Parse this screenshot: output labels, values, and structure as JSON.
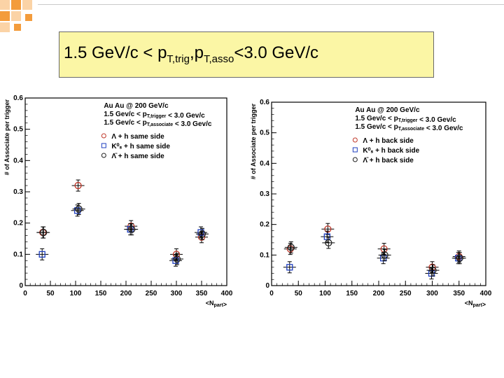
{
  "slide": {
    "title_main": "1.5 GeV/c < p",
    "title_sub1": "T,trig",
    "title_mid": ",p",
    "title_sub2": "T,asso",
    "title_end": "<3.0 GeV/c"
  },
  "colors": {
    "title_bg": "#fbf6a5",
    "deco_orange": "#f39c3c",
    "deco_light": "#fbd3a6",
    "lambda": "#c0392b",
    "k0s": "#1f3fbf",
    "antilambda": "#222222"
  },
  "chart_data": [
    {
      "type": "scatter",
      "side": "same side",
      "ylabel": "# of Associate per trigger",
      "xlabel": "<N",
      "xlabel_sub": "part",
      "xlabel_end": ">",
      "xlim": [
        0,
        400
      ],
      "ylim": [
        0,
        0.6
      ],
      "xticks": [
        0,
        50,
        100,
        150,
        200,
        250,
        300,
        350,
        400
      ],
      "yticks": [
        0,
        0.1,
        0.2,
        0.3,
        0.4,
        0.5,
        0.6
      ],
      "annotation": {
        "line1": "Au Au @ 200 GeV/c",
        "line2a": "1.5 Gev/c < p",
        "line2sub": "T,trigger",
        "line2b": " < 3.0 Gev/c",
        "line3a": "1.5 Gev/c < p",
        "line3sub": "T,associate",
        "line3b": " < 3.0 Gev/c"
      },
      "legend": [
        {
          "label": "Λ + h same side",
          "series": "lambda"
        },
        {
          "label": "K⁰ₛ + h same side",
          "series": "k0s"
        },
        {
          "label": "Λ̄ + h same side",
          "series": "antilambda"
        }
      ],
      "series": [
        {
          "name": "lambda",
          "marker": "circle",
          "x": [
            35,
            105,
            210,
            300,
            350
          ],
          "y": [
            0.17,
            0.32,
            0.19,
            0.1,
            0.155
          ]
        },
        {
          "name": "k0s",
          "marker": "square",
          "x": [
            35,
            105,
            210,
            300,
            350
          ],
          "y": [
            0.1,
            0.24,
            0.18,
            0.08,
            0.17
          ]
        },
        {
          "name": "antilambda",
          "marker": "circle",
          "x": [
            35,
            105,
            210,
            300,
            350
          ],
          "y": [
            0.17,
            0.245,
            0.18,
            0.085,
            0.165
          ]
        }
      ]
    },
    {
      "type": "scatter",
      "side": "back side",
      "ylabel": "# of Associate per trigger",
      "xlabel": "<N",
      "xlabel_sub": "part",
      "xlabel_end": ">",
      "xlim": [
        0,
        400
      ],
      "ylim": [
        0,
        0.6
      ],
      "xticks": [
        0,
        50,
        100,
        150,
        200,
        250,
        300,
        350,
        400
      ],
      "yticks": [
        0,
        0.1,
        0.2,
        0.3,
        0.4,
        0.5,
        0.6
      ],
      "annotation": {
        "line1": "Au Au @ 200 GeV/c",
        "line2a": "1.5 Gev/c < p",
        "line2sub": "T,trigger",
        "line2b": " < 3.0 Gev/c",
        "line3a": "1.5 Gev/c < p",
        "line3sub": "T,associate",
        "line3b": " < 3.0 Gev/c"
      },
      "legend": [
        {
          "label": "Λ + h back side",
          "series": "lambda"
        },
        {
          "label": "K⁰ₛ + h back side",
          "series": "k0s"
        },
        {
          "label": "Λ̄ + h back side",
          "series": "antilambda"
        }
      ],
      "series": [
        {
          "name": "lambda",
          "marker": "circle",
          "x": [
            35,
            105,
            210,
            300,
            350
          ],
          "y": [
            0.12,
            0.185,
            0.12,
            0.06,
            0.095
          ]
        },
        {
          "name": "k0s",
          "marker": "square",
          "x": [
            35,
            105,
            210,
            300,
            350
          ],
          "y": [
            0.06,
            0.16,
            0.09,
            0.04,
            0.09
          ]
        },
        {
          "name": "antilambda",
          "marker": "circle",
          "x": [
            35,
            105,
            210,
            300,
            350
          ],
          "y": [
            0.125,
            0.14,
            0.1,
            0.05,
            0.09
          ]
        }
      ]
    }
  ]
}
